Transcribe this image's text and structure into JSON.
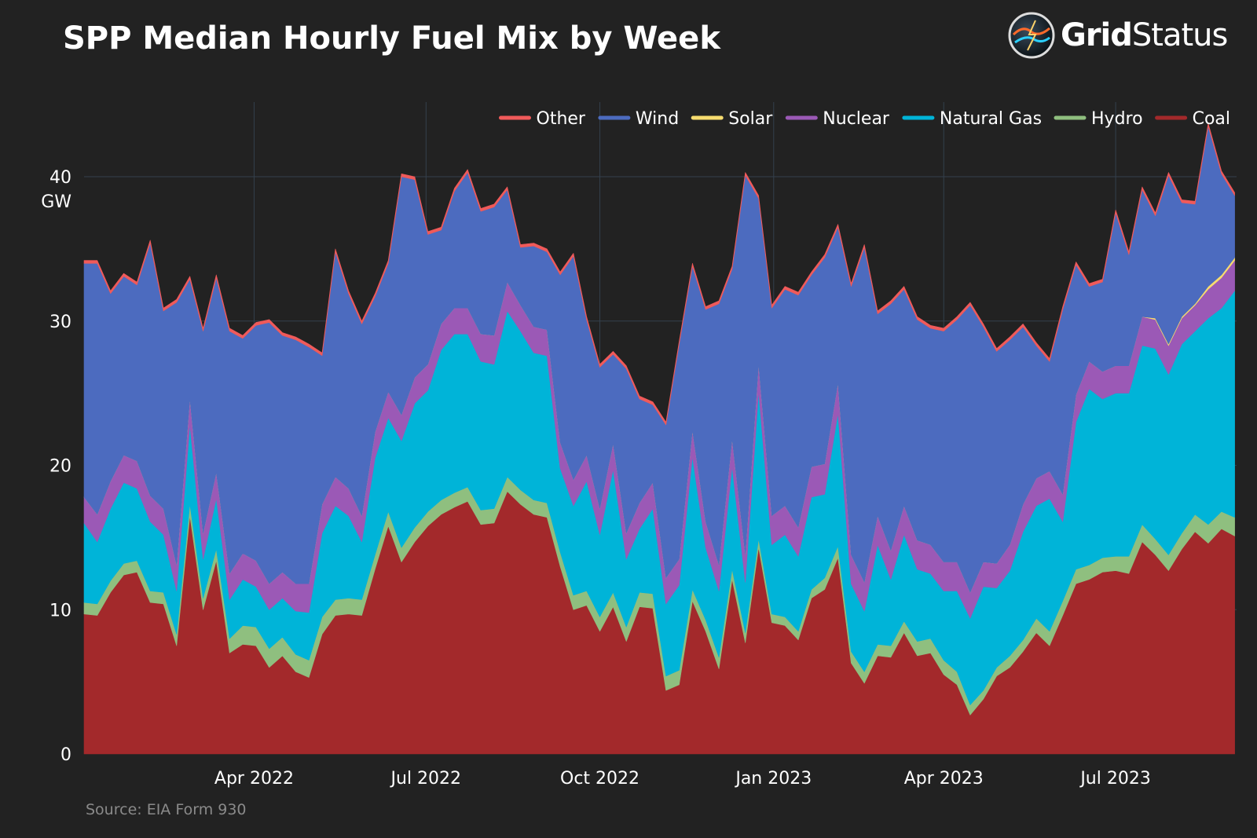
{
  "page": {
    "title": "SPP Median Hourly Fuel Mix by Week",
    "source": "Source: EIA Form 930",
    "brand": {
      "part1": "Grid",
      "part2": "Status",
      "icon": "lightning-globe-icon"
    }
  },
  "chart_data": {
    "type": "area",
    "stacked": true,
    "title": "SPP Median Hourly Fuel Mix by Week",
    "ylabel_unit": "GW",
    "ylim": [
      0,
      44
    ],
    "yticks": [
      0,
      10,
      20,
      30,
      40
    ],
    "xlim": [
      "2022-01-01",
      "2023-09-03"
    ],
    "xtick_labels": [
      {
        "date": "2022-04-01",
        "label": "Apr 2022"
      },
      {
        "date": "2022-07-01",
        "label": "Jul 2022"
      },
      {
        "date": "2022-10-01",
        "label": "Oct 2022"
      },
      {
        "date": "2023-01-01",
        "label": "Jan 2023"
      },
      {
        "date": "2023-04-01",
        "label": "Apr 2023"
      },
      {
        "date": "2023-07-01",
        "label": "Jul 2023"
      }
    ],
    "grid": true,
    "legend_position": "top-right",
    "x": [
      "2022-01-01",
      "2022-01-08",
      "2022-01-15",
      "2022-01-22",
      "2022-01-29",
      "2022-02-05",
      "2022-02-12",
      "2022-02-19",
      "2022-02-26",
      "2022-03-05",
      "2022-03-12",
      "2022-03-19",
      "2022-03-26",
      "2022-04-02",
      "2022-04-09",
      "2022-04-16",
      "2022-04-23",
      "2022-04-30",
      "2022-05-07",
      "2022-05-14",
      "2022-05-21",
      "2022-05-28",
      "2022-06-04",
      "2022-06-11",
      "2022-06-18",
      "2022-06-25",
      "2022-07-02",
      "2022-07-09",
      "2022-07-16",
      "2022-07-23",
      "2022-07-30",
      "2022-08-06",
      "2022-08-13",
      "2022-08-20",
      "2022-08-27",
      "2022-09-03",
      "2022-09-10",
      "2022-09-17",
      "2022-09-24",
      "2022-10-01",
      "2022-10-08",
      "2022-10-15",
      "2022-10-22",
      "2022-10-29",
      "2022-11-05",
      "2022-11-12",
      "2022-11-19",
      "2022-11-26",
      "2022-12-03",
      "2022-12-10",
      "2022-12-17",
      "2022-12-24",
      "2022-12-31",
      "2023-01-07",
      "2023-01-14",
      "2023-01-21",
      "2023-01-28",
      "2023-02-04",
      "2023-02-11",
      "2023-02-18",
      "2023-02-25",
      "2023-03-04",
      "2023-03-11",
      "2023-03-18",
      "2023-03-25",
      "2023-04-01",
      "2023-04-08",
      "2023-04-15",
      "2023-04-22",
      "2023-04-29",
      "2023-05-06",
      "2023-05-13",
      "2023-05-20",
      "2023-05-27",
      "2023-06-03",
      "2023-06-10",
      "2023-06-17",
      "2023-06-24",
      "2023-07-01",
      "2023-07-08",
      "2023-07-15",
      "2023-07-22",
      "2023-07-29",
      "2023-08-05",
      "2023-08-12",
      "2023-08-19",
      "2023-08-26",
      "2023-09-02"
    ],
    "series": [
      {
        "name": "Coal",
        "color": "#a3292b",
        "values": [
          9.7,
          9.6,
          11.2,
          12.4,
          12.6,
          10.5,
          10.4,
          7.5,
          16.5,
          10.0,
          13.4,
          7.0,
          7.6,
          7.5,
          6.0,
          6.8,
          5.7,
          5.3,
          8.3,
          9.6,
          9.7,
          9.6,
          12.8,
          15.8,
          13.3,
          14.7,
          15.8,
          16.6,
          17.1,
          17.5,
          15.9,
          16.0,
          18.2,
          17.3,
          16.6,
          16.4,
          13.0,
          10.0,
          10.3,
          8.5,
          10.2,
          7.8,
          10.2,
          10.1,
          4.4,
          4.8,
          10.6,
          8.5,
          5.9,
          12.1,
          7.7,
          14.3,
          9.1,
          8.9,
          7.9,
          10.8,
          11.4,
          13.6,
          6.3,
          4.9,
          6.8,
          6.7,
          8.4,
          6.8,
          7.0,
          5.5,
          4.8,
          2.7,
          3.8,
          5.4,
          6.0,
          7.1,
          8.4,
          7.5,
          9.6,
          11.8,
          12.1,
          12.6,
          12.7,
          12.5,
          14.7,
          13.8,
          12.7,
          14.2,
          15.4,
          14.6,
          15.6,
          15.1
        ]
      },
      {
        "name": "Hydro",
        "color": "#8fbf7f",
        "values": [
          0.8,
          0.8,
          0.8,
          0.8,
          0.8,
          0.8,
          0.8,
          0.8,
          0.8,
          0.8,
          0.8,
          1.0,
          1.3,
          1.3,
          1.3,
          1.3,
          1.2,
          1.2,
          1.2,
          1.1,
          1.1,
          1.1,
          1.0,
          1.0,
          1.0,
          1.0,
          1.0,
          1.0,
          1.0,
          1.0,
          1.0,
          1.0,
          1.0,
          1.0,
          1.0,
          1.0,
          1.0,
          1.0,
          1.0,
          1.0,
          1.0,
          1.0,
          1.0,
          1.0,
          1.0,
          1.0,
          0.8,
          0.8,
          0.8,
          0.7,
          0.7,
          0.6,
          0.6,
          0.6,
          0.6,
          0.6,
          0.8,
          0.8,
          0.8,
          0.8,
          0.8,
          0.8,
          0.8,
          1.0,
          1.0,
          1.0,
          0.9,
          0.7,
          0.6,
          0.6,
          0.8,
          0.8,
          1.0,
          1.0,
          1.0,
          1.0,
          1.0,
          1.0,
          1.0,
          1.2,
          1.2,
          1.1,
          1.1,
          1.1,
          1.2,
          1.3,
          1.2,
          1.3
        ]
      },
      {
        "name": "Natural Gas",
        "color": "#00b4d8",
        "values": [
          5.5,
          4.3,
          5.0,
          5.6,
          5.0,
          4.8,
          4.0,
          3.0,
          5.5,
          2.7,
          3.5,
          2.7,
          3.2,
          2.8,
          2.7,
          2.7,
          3.0,
          3.3,
          5.8,
          6.5,
          5.7,
          4.0,
          6.7,
          6.5,
          7.4,
          8.6,
          8.4,
          10.4,
          11.0,
          10.6,
          10.3,
          10.0,
          11.5,
          11.0,
          10.2,
          10.2,
          5.8,
          6.2,
          7.6,
          5.7,
          8.5,
          4.7,
          4.4,
          5.9,
          5.0,
          5.9,
          9.2,
          5.0,
          4.6,
          7.1,
          3.5,
          10.2,
          4.8,
          5.7,
          5.2,
          6.4,
          5.8,
          9.2,
          4.7,
          4.2,
          6.9,
          4.6,
          6.0,
          5.0,
          4.5,
          4.8,
          5.6,
          6.0,
          7.2,
          5.5,
          5.9,
          7.5,
          7.8,
          9.2,
          5.5,
          10.2,
          12.2,
          11.0,
          11.3,
          11.3,
          12.4,
          13.2,
          12.5,
          13.1,
          12.7,
          14.3,
          14.1,
          15.7
        ]
      },
      {
        "name": "Nuclear",
        "color": "#9b59b6",
        "values": [
          1.8,
          1.9,
          1.9,
          1.9,
          1.9,
          1.8,
          1.8,
          1.8,
          1.8,
          1.8,
          1.8,
          1.8,
          1.8,
          1.8,
          1.8,
          1.8,
          1.9,
          2.0,
          2.0,
          2.0,
          1.9,
          1.8,
          1.8,
          1.8,
          1.8,
          1.8,
          1.8,
          1.8,
          1.8,
          1.8,
          1.9,
          2.0,
          2.0,
          1.8,
          1.8,
          1.8,
          1.8,
          1.8,
          1.8,
          1.8,
          1.8,
          1.8,
          1.8,
          1.8,
          1.8,
          1.8,
          1.8,
          1.8,
          1.8,
          1.9,
          1.9,
          1.9,
          2.0,
          2.0,
          2.0,
          2.1,
          2.1,
          2.1,
          2.0,
          2.0,
          2.0,
          2.0,
          2.0,
          2.0,
          2.0,
          2.0,
          2.0,
          1.8,
          1.7,
          1.7,
          1.8,
          1.9,
          1.9,
          1.9,
          1.9,
          1.9,
          1.9,
          1.9,
          1.9,
          1.9,
          2.0,
          2.0,
          2.0,
          1.8,
          1.8,
          2.0,
          2.1,
          2.1
        ]
      },
      {
        "name": "Solar",
        "color": "#f7dc6f",
        "values": [
          0,
          0,
          0,
          0,
          0,
          0,
          0,
          0,
          0,
          0,
          0,
          0,
          0,
          0,
          0,
          0,
          0,
          0,
          0,
          0,
          0,
          0,
          0,
          0,
          0,
          0,
          0,
          0,
          0,
          0,
          0,
          0,
          0,
          0,
          0,
          0,
          0,
          0,
          0,
          0,
          0,
          0,
          0,
          0,
          0,
          0,
          0,
          0,
          0,
          0,
          0,
          0,
          0,
          0,
          0,
          0,
          0,
          0,
          0,
          0,
          0,
          0,
          0,
          0,
          0,
          0,
          0,
          0,
          0,
          0,
          0,
          0,
          0,
          0,
          0,
          0,
          0,
          0,
          0,
          0,
          0,
          0.1,
          0.1,
          0.1,
          0.1,
          0.2,
          0.2,
          0.2
        ]
      },
      {
        "name": "Wind",
        "color": "#4c6bbf",
        "values": [
          16.2,
          17.4,
          13.0,
          12.4,
          12.2,
          17.5,
          13.7,
          18.2,
          8.3,
          14.0,
          13.5,
          16.8,
          14.9,
          16.3,
          18.1,
          16.4,
          16.9,
          16.4,
          10.3,
          15.6,
          13.5,
          13.3,
          9.4,
          8.9,
          16.5,
          13.7,
          9.0,
          6.5,
          8.1,
          9.4,
          8.5,
          8.9,
          6.4,
          4.0,
          5.6,
          5.4,
          11.6,
          15.5,
          9.4,
          9.8,
          6.2,
          11.4,
          7.2,
          5.4,
          10.6,
          14.9,
          11.4,
          14.7,
          18.1,
          11.8,
          26.3,
          11.5,
          14.4,
          15.0,
          16.1,
          13.3,
          14.3,
          10.8,
          18.6,
          23.2,
          14.0,
          17.1,
          15.0,
          15.3,
          15.0,
          16.0,
          16.8,
          19.9,
          16.3,
          14.7,
          14.2,
          12.3,
          9.2,
          7.6,
          12.8,
          9.0,
          5.2,
          6.2,
          10.6,
          7.7,
          8.8,
          7.1,
          11.7,
          7.9,
          6.9,
          11.1,
          7.0,
          4.3
        ]
      },
      {
        "name": "Other",
        "color": "#f05a5a",
        "values": [
          0.2,
          0.2,
          0.2,
          0.2,
          0.2,
          0.2,
          0.2,
          0.2,
          0.2,
          0.2,
          0.2,
          0.2,
          0.2,
          0.2,
          0.2,
          0.2,
          0.2,
          0.2,
          0.2,
          0.2,
          0.2,
          0.2,
          0.2,
          0.2,
          0.2,
          0.2,
          0.2,
          0.2,
          0.2,
          0.2,
          0.2,
          0.2,
          0.2,
          0.2,
          0.2,
          0.2,
          0.2,
          0.2,
          0.2,
          0.2,
          0.2,
          0.2,
          0.2,
          0.2,
          0.2,
          0.2,
          0.2,
          0.2,
          0.2,
          0.2,
          0.2,
          0.2,
          0.2,
          0.2,
          0.2,
          0.2,
          0.2,
          0.2,
          0.2,
          0.2,
          0.2,
          0.2,
          0.2,
          0.2,
          0.2,
          0.2,
          0.2,
          0.2,
          0.2,
          0.2,
          0.2,
          0.2,
          0.2,
          0.2,
          0.2,
          0.2,
          0.2,
          0.2,
          0.2,
          0.2,
          0.2,
          0.2,
          0.2,
          0.2,
          0.2,
          0.2,
          0.2,
          0.2
        ]
      }
    ],
    "legend_order": [
      "Other",
      "Wind",
      "Solar",
      "Nuclear",
      "Natural Gas",
      "Hydro",
      "Coal"
    ]
  }
}
